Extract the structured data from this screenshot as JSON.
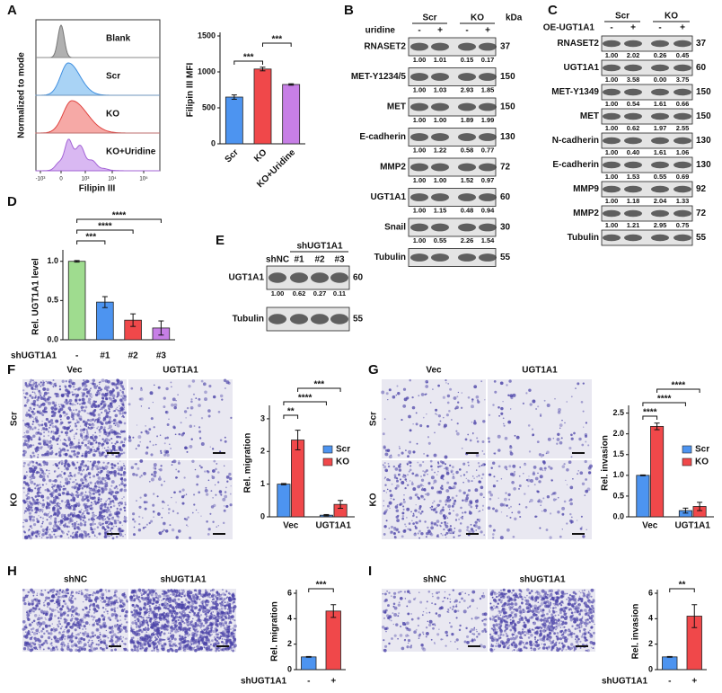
{
  "panel_letters": [
    "A",
    "B",
    "C",
    "D",
    "E",
    "F",
    "G",
    "H",
    "I"
  ],
  "flow": {
    "ylabel": "Normalized to mode",
    "xlabel": "Filipin III",
    "samples": [
      "Blank",
      "Scr",
      "KO",
      "KO+Uridine"
    ],
    "xtick_labels": [
      "-10³",
      "0",
      "10³",
      "10⁴",
      "10⁵"
    ]
  },
  "blots": [
    {
      "header": "uridine",
      "groups": [
        "Scr",
        "KO"
      ],
      "lanes": [
        "-",
        "+",
        "-",
        "+"
      ],
      "unit": "kDa",
      "rows": [
        {
          "name": "RNASET2",
          "kda": 37,
          "quant": [
            "1.00",
            "1.01",
            "0.15",
            "0.17"
          ]
        },
        {
          "name": "MET-Y1234/5",
          "kda": 150,
          "quant": [
            "1.00",
            "1.03",
            "2.93",
            "1.85"
          ]
        },
        {
          "name": "MET",
          "kda": 150,
          "quant": [
            "1.00",
            "1.00",
            "1.89",
            "1.99"
          ]
        },
        {
          "name": "E-cadherin",
          "kda": 130,
          "quant": [
            "1.00",
            "1.22",
            "0.58",
            "0.77"
          ]
        },
        {
          "name": "MMP2",
          "kda": 72,
          "quant": [
            "1.00",
            "1.00",
            "1.52",
            "0.97"
          ]
        },
        {
          "name": "UGT1A1",
          "kda": 60,
          "quant": [
            "1.00",
            "1.15",
            "0.48",
            "0.94"
          ]
        },
        {
          "name": "Snail",
          "kda": 30,
          "quant": [
            "1.00",
            "0.55",
            "2.26",
            "1.54"
          ]
        },
        {
          "name": "Tubulin",
          "kda": 55
        }
      ]
    },
    {
      "header": "OE-UGT1A1",
      "groups": [
        "Scr",
        "KO"
      ],
      "lanes": [
        "-",
        "+",
        "-",
        "+"
      ],
      "rows": [
        {
          "name": "RNASET2",
          "kda": 37,
          "quant": [
            "1.00",
            "2.02",
            "0.26",
            "0.45"
          ]
        },
        {
          "name": "UGT1A1",
          "kda": 60,
          "quant": [
            "1.00",
            "3.58",
            "0.00",
            "3.75"
          ]
        },
        {
          "name": "MET-Y1349",
          "kda": 150,
          "quant": [
            "1.00",
            "0.54",
            "1.61",
            "0.66"
          ]
        },
        {
          "name": "MET",
          "kda": 150,
          "quant": [
            "1.00",
            "0.62",
            "1.97",
            "2.55"
          ]
        },
        {
          "name": "N-cadherin",
          "kda": 130,
          "quant": [
            "1.00",
            "0.40",
            "1.61",
            "1.06"
          ]
        },
        {
          "name": "E-cadherin",
          "kda": 130,
          "quant": [
            "1.00",
            "1.53",
            "0.55",
            "0.69"
          ]
        },
        {
          "name": "MMP9",
          "kda": 92,
          "quant": [
            "1.00",
            "1.18",
            "2.04",
            "1.33"
          ]
        },
        {
          "name": "MMP2",
          "kda": 72,
          "quant": [
            "1.00",
            "1.21",
            "2.95",
            "0.75"
          ]
        },
        {
          "name": "Tubulin",
          "kda": 55
        }
      ]
    },
    {
      "header": "shUGT1A1",
      "lanes": [
        "shNC",
        "#1",
        "#2",
        "#3"
      ],
      "rows": [
        {
          "name": "UGT1A1",
          "kda": 60,
          "quant": [
            "1.00",
            "0.62",
            "0.27",
            "0.11"
          ]
        },
        {
          "name": "Tubulin",
          "kda": 55
        }
      ]
    }
  ],
  "images": [
    {
      "columns": [
        "Vec",
        "UGT1A1"
      ],
      "rows": [
        "Scr",
        "KO"
      ]
    },
    {
      "columns": [
        "Vec",
        "UGT1A1"
      ],
      "rows": [
        "Scr",
        "KO"
      ]
    },
    {
      "columns": [
        "shNC",
        "shUGT1A1"
      ]
    },
    {
      "columns": [
        "shNC",
        "shUGT1A1"
      ]
    }
  ],
  "chart_data": [
    {
      "type": "bar",
      "ylabel": "Filipin III MFI",
      "categories": [
        "Scr",
        "KO",
        "KO+Uridine"
      ],
      "values": [
        650,
        1040,
        825
      ],
      "errors": [
        30,
        25,
        10
      ],
      "colors": [
        "#4d94f0",
        "#f0484a",
        "#c77fe6"
      ],
      "ylim": [
        0,
        1500
      ],
      "yticks": [
        0,
        500,
        1000,
        1500
      ],
      "annotations": [
        "***",
        "***"
      ]
    },
    {
      "type": "bar",
      "ylabel": "Rel. UGT1A1 level",
      "xlabel": "shUGT1A1",
      "categories": [
        "-",
        "#1",
        "#2",
        "#3"
      ],
      "values": [
        1.0,
        0.48,
        0.25,
        0.15
      ],
      "errors": [
        0.01,
        0.07,
        0.08,
        0.09
      ],
      "colors": [
        "#9fdc8f",
        "#4d94f0",
        "#f0484a",
        "#c77fe6"
      ],
      "ylim": [
        0,
        1.1
      ],
      "yticks": [
        {
          "value": 0,
          "label": "0.0"
        },
        0.5,
        {
          "value": 1,
          "label": "1.0"
        }
      ],
      "annotations": [
        "***",
        "****",
        "****"
      ]
    },
    {
      "type": "bar",
      "ylabel": "Rel. migration",
      "categories": [
        "Vec",
        "UGT1A1"
      ],
      "series": [
        {
          "name": "Scr",
          "color": "#4d94f0",
          "values": [
            1.0,
            0.05
          ],
          "errors": [
            0.02,
            0.02
          ]
        },
        {
          "name": "KO",
          "color": "#f0484a",
          "values": [
            2.35,
            0.38
          ],
          "errors": [
            0.3,
            0.12
          ]
        }
      ],
      "ylim": [
        0,
        3.3
      ],
      "yticks": [
        0,
        1,
        2,
        3
      ],
      "annotations": [
        "**",
        "****",
        "***"
      ]
    },
    {
      "type": "bar",
      "ylabel": "Rel. invasion",
      "categories": [
        "Vec",
        "UGT1A1"
      ],
      "series": [
        {
          "name": "Scr",
          "color": "#4d94f0",
          "values": [
            1.0,
            0.15
          ],
          "errors": [
            0.01,
            0.06
          ]
        },
        {
          "name": "KO",
          "color": "#f0484a",
          "values": [
            2.18,
            0.25
          ],
          "errors": [
            0.08,
            0.1
          ]
        }
      ],
      "ylim": [
        0,
        2.6
      ],
      "yticks": [
        {
          "value": 0,
          "label": "0.0"
        },
        0.5,
        {
          "value": 1,
          "label": "1.0"
        },
        1.5,
        {
          "value": 2,
          "label": "2.0"
        },
        2.5
      ],
      "annotations": [
        "****",
        "****",
        "****"
      ]
    },
    {
      "type": "bar",
      "ylabel": "Rel. migration",
      "xlabel": "shUGT1A1",
      "categories": [
        "-",
        "+"
      ],
      "values": [
        1.0,
        4.6
      ],
      "errors": [
        0.03,
        0.5
      ],
      "colors": [
        "#4d94f0",
        "#f0484a"
      ],
      "ylim": [
        0,
        6
      ],
      "yticks": [
        0,
        2,
        4,
        6
      ],
      "annotations": [
        "***"
      ]
    },
    {
      "type": "bar",
      "ylabel": "Rel. invasion",
      "xlabel": "shUGT1A1",
      "categories": [
        "-",
        "+"
      ],
      "values": [
        1.0,
        4.2
      ],
      "errors": [
        0.03,
        0.9
      ],
      "colors": [
        "#4d94f0",
        "#f0484a"
      ],
      "ylim": [
        0,
        6
      ],
      "yticks": [
        0,
        2,
        4,
        6
      ],
      "annotations": [
        "**"
      ]
    }
  ]
}
